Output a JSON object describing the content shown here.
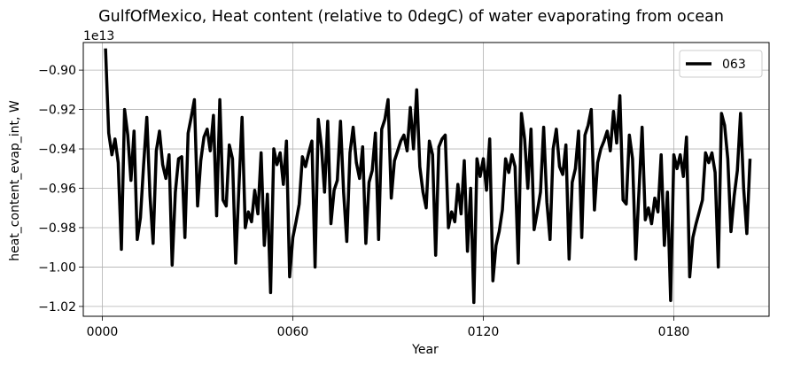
{
  "chart_data": {
    "type": "line",
    "title": "GulfOfMexico, Heat content (relative to 0degC) of water evaporating from ocean",
    "xlabel": "Year",
    "ylabel": "heat_content_evap_int, W",
    "y_offset_label": "1e13",
    "y_scale_exponent": 13,
    "xlim": [
      -6,
      210
    ],
    "ylim": [
      -1.025,
      -0.886
    ],
    "x_ticks": [
      0,
      60,
      120,
      180
    ],
    "x_tick_labels": [
      "0000",
      "0060",
      "0120",
      "0180"
    ],
    "y_ticks": [
      -1.02,
      -1.0,
      -0.98,
      -0.96,
      -0.94,
      -0.92,
      -0.9
    ],
    "y_tick_labels": [
      "−1.02",
      "−1.00",
      "−0.98",
      "−0.96",
      "−0.94",
      "−0.92",
      "−0.90"
    ],
    "grid": true,
    "legend_position": "top-right",
    "series": [
      {
        "name": "063",
        "color": "#000000",
        "x_start": 1,
        "x_step": 1,
        "values": [
          -0.889,
          -0.932,
          -0.943,
          -0.935,
          -0.947,
          -0.991,
          -0.92,
          -0.933,
          -0.956,
          -0.931,
          -0.986,
          -0.975,
          -0.948,
          -0.924,
          -0.964,
          -0.988,
          -0.941,
          -0.931,
          -0.948,
          -0.955,
          -0.943,
          -0.999,
          -0.962,
          -0.945,
          -0.944,
          -0.985,
          -0.932,
          -0.924,
          -0.915,
          -0.969,
          -0.946,
          -0.934,
          -0.93,
          -0.941,
          -0.923,
          -0.974,
          -0.915,
          -0.966,
          -0.969,
          -0.938,
          -0.945,
          -0.998,
          -0.96,
          -0.924,
          -0.98,
          -0.972,
          -0.977,
          -0.961,
          -0.973,
          -0.942,
          -0.989,
          -0.963,
          -1.013,
          -0.94,
          -0.948,
          -0.942,
          -0.958,
          -0.936,
          -1.005,
          -0.985,
          -0.977,
          -0.968,
          -0.944,
          -0.949,
          -0.942,
          -0.936,
          -1.0,
          -0.925,
          -0.939,
          -0.962,
          -0.926,
          -0.978,
          -0.961,
          -0.956,
          -0.926,
          -0.962,
          -0.987,
          -0.942,
          -0.929,
          -0.947,
          -0.955,
          -0.939,
          -0.988,
          -0.957,
          -0.951,
          -0.932,
          -0.986,
          -0.93,
          -0.925,
          -0.915,
          -0.965,
          -0.946,
          -0.941,
          -0.936,
          -0.933,
          -0.941,
          -0.919,
          -0.94,
          -0.91,
          -0.949,
          -0.962,
          -0.97,
          -0.936,
          -0.943,
          -0.994,
          -0.939,
          -0.935,
          -0.933,
          -0.98,
          -0.972,
          -0.977,
          -0.958,
          -0.973,
          -0.946,
          -0.992,
          -0.96,
          -1.018,
          -0.945,
          -0.954,
          -0.945,
          -0.961,
          -0.935,
          -1.007,
          -0.989,
          -0.982,
          -0.971,
          -0.945,
          -0.952,
          -0.943,
          -0.949,
          -0.998,
          -0.922,
          -0.935,
          -0.96,
          -0.93,
          -0.981,
          -0.972,
          -0.962,
          -0.929,
          -0.967,
          -0.986,
          -0.94,
          -0.93,
          -0.949,
          -0.953,
          -0.938,
          -0.996,
          -0.957,
          -0.95,
          -0.931,
          -0.985,
          -0.933,
          -0.928,
          -0.92,
          -0.971,
          -0.947,
          -0.94,
          -0.936,
          -0.931,
          -0.941,
          -0.921,
          -0.937,
          -0.913,
          -0.966,
          -0.968,
          -0.933,
          -0.945,
          -0.996,
          -0.962,
          -0.929,
          -0.976,
          -0.97,
          -0.978,
          -0.965,
          -0.972,
          -0.943,
          -0.989,
          -0.962,
          -1.017,
          -0.943,
          -0.95,
          -0.943,
          -0.954,
          -0.934,
          -1.005,
          -0.985,
          -0.978,
          -0.972,
          -0.966,
          -0.942,
          -0.947,
          -0.942,
          -0.952,
          -1.0,
          -0.922,
          -0.928,
          -0.945,
          -0.982,
          -0.964,
          -0.951,
          -0.922,
          -0.96,
          -0.983,
          -0.945
        ]
      }
    ]
  }
}
